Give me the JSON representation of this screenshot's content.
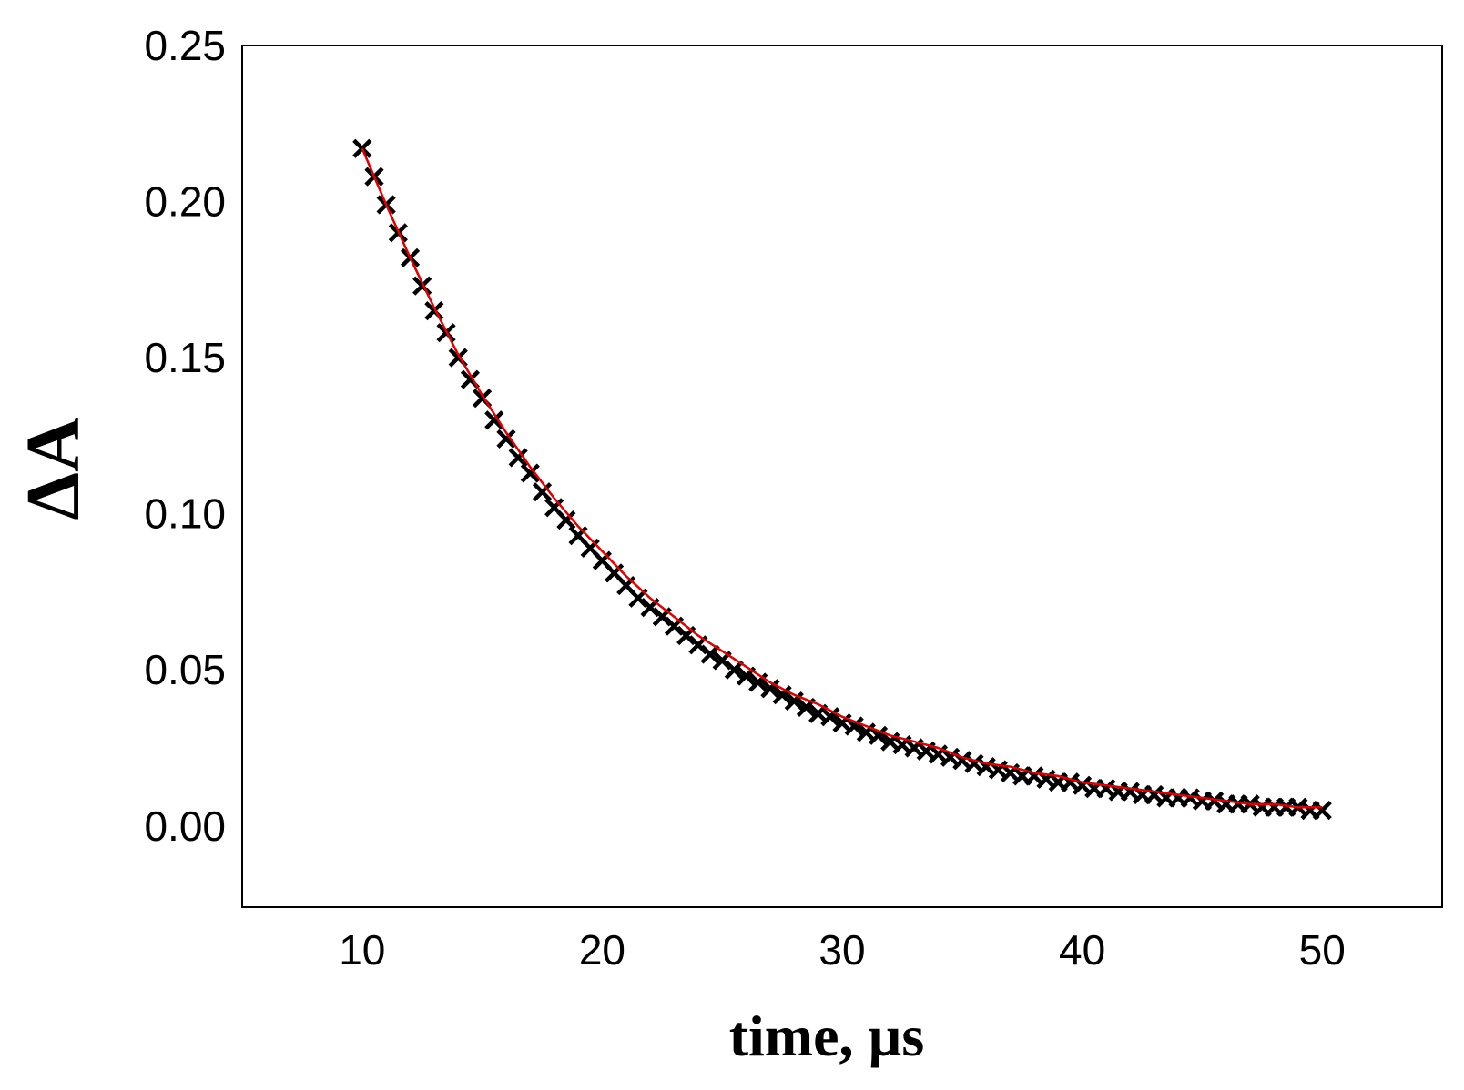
{
  "chart_data": {
    "type": "scatter",
    "title": "",
    "xlabel": "time, µs",
    "ylabel": "ΔA",
    "xlim": [
      5,
      55
    ],
    "ylim": [
      -0.026,
      0.25
    ],
    "x_ticks": [
      10,
      20,
      30,
      40,
      50
    ],
    "x_tick_labels": [
      "10",
      "20",
      "30",
      "40",
      "50"
    ],
    "y_ticks": [
      0.0,
      0.05,
      0.1,
      0.15,
      0.2,
      0.25
    ],
    "y_tick_labels": [
      "0.00",
      "0.05",
      "0.10",
      "0.15",
      "0.20",
      "0.25"
    ],
    "grid": false,
    "legend": "none",
    "series": [
      {
        "kind": "scatter-markers",
        "color": "#000000",
        "marker": "x",
        "x": [
          10.0,
          10.5,
          11.0,
          11.5,
          12.0,
          12.5,
          13.0,
          13.5,
          14.0,
          14.5,
          15.0,
          15.5,
          16.0,
          16.5,
          17.0,
          17.5,
          18.0,
          18.5,
          19.0,
          19.5,
          20.0,
          20.5,
          21.0,
          21.5,
          22.0,
          22.5,
          23.0,
          23.5,
          24.0,
          24.5,
          25.0,
          25.5,
          26.0,
          26.5,
          27.0,
          27.5,
          28.0,
          28.5,
          29.0,
          29.5,
          30.0,
          30.5,
          31.0,
          31.5,
          32.0,
          32.5,
          33.0,
          33.5,
          34.0,
          34.5,
          35.0,
          35.5,
          36.0,
          36.5,
          37.0,
          37.5,
          38.0,
          38.5,
          39.0,
          39.5,
          40.0,
          40.5,
          41.0,
          41.5,
          42.0,
          42.5,
          43.0,
          43.5,
          44.0,
          44.5,
          45.0,
          45.5,
          46.0,
          46.5,
          47.0,
          47.5,
          48.0,
          48.5,
          49.0,
          49.5,
          50.0
        ],
        "y": [
          0.217,
          0.208,
          0.199,
          0.19,
          0.182,
          0.173,
          0.165,
          0.158,
          0.15,
          0.143,
          0.137,
          0.13,
          0.124,
          0.118,
          0.113,
          0.107,
          0.102,
          0.098,
          0.093,
          0.089,
          0.085,
          0.081,
          0.077,
          0.073,
          0.07,
          0.067,
          0.064,
          0.061,
          0.058,
          0.055,
          0.053,
          0.05,
          0.048,
          0.046,
          0.044,
          0.042,
          0.04,
          0.038,
          0.036,
          0.035,
          0.033,
          0.032,
          0.03,
          0.029,
          0.027,
          0.026,
          0.025,
          0.024,
          0.023,
          0.022,
          0.021,
          0.02,
          0.019,
          0.018,
          0.017,
          0.016,
          0.016,
          0.015,
          0.014,
          0.014,
          0.013,
          0.012,
          0.012,
          0.011,
          0.011,
          0.01,
          0.01,
          0.009,
          0.009,
          0.009,
          0.008,
          0.008,
          0.007,
          0.007,
          0.007,
          0.006,
          0.006,
          0.006,
          0.006,
          0.005,
          0.005
        ]
      },
      {
        "kind": "line",
        "color": "#e00000",
        "x": [
          10.0,
          11.0,
          12.0,
          13.0,
          14.0,
          15.0,
          16.0,
          17.0,
          18.0,
          19.0,
          20.0,
          21.0,
          22.0,
          23.0,
          24.0,
          25.0,
          26.0,
          27.0,
          28.0,
          29.0,
          30.0,
          31.0,
          32.0,
          33.0,
          34.0,
          35.0,
          36.0,
          37.0,
          38.0,
          39.0,
          40.0,
          41.0,
          42.0,
          43.0,
          44.0,
          45.0,
          46.0,
          47.0,
          48.0,
          49.0,
          50.0
        ],
        "y": [
          0.217,
          0.199,
          0.182,
          0.166,
          0.151,
          0.138,
          0.126,
          0.115,
          0.105,
          0.096,
          0.088,
          0.08,
          0.073,
          0.067,
          0.061,
          0.056,
          0.051,
          0.046,
          0.042,
          0.039,
          0.035,
          0.032,
          0.029,
          0.027,
          0.025,
          0.022,
          0.02,
          0.019,
          0.017,
          0.016,
          0.014,
          0.013,
          0.012,
          0.011,
          0.01,
          0.009,
          0.008,
          0.007,
          0.007,
          0.006,
          0.006
        ]
      }
    ]
  }
}
